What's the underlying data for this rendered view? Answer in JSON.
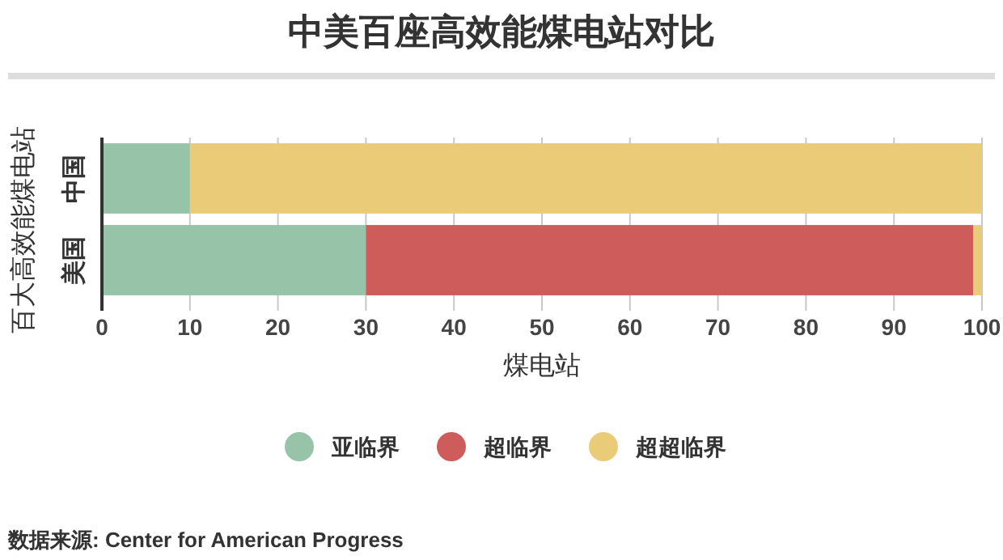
{
  "chart_data": {
    "type": "bar",
    "orientation": "horizontal",
    "stacked": true,
    "title": "中美百座高效能煤电站对比",
    "xlabel": "煤电站",
    "ylabel": "百大高效能煤电站",
    "categories": [
      "中国",
      "美国"
    ],
    "series": [
      {
        "name": "亚临界",
        "color": "#97c3a9",
        "values": [
          10,
          30
        ]
      },
      {
        "name": "超临界",
        "color": "#cd5c5a",
        "values": [
          0,
          69
        ]
      },
      {
        "name": "超超临界",
        "color": "#e9cb78",
        "values": [
          90,
          1
        ]
      }
    ],
    "xlim": [
      0,
      100
    ],
    "xticks": [
      0,
      10,
      20,
      30,
      40,
      50,
      60,
      70,
      80,
      90,
      100
    ],
    "grid": "x",
    "legend": "bottom",
    "annotations": [
      "数据来源: Center for American Progress"
    ]
  }
}
